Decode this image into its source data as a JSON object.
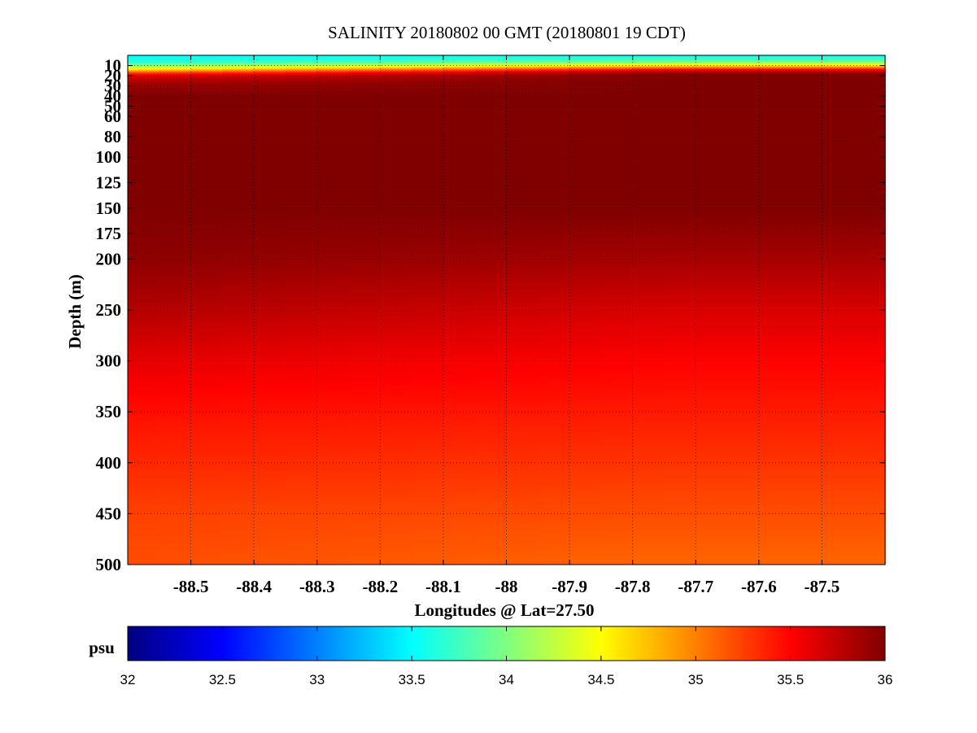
{
  "chart_data": {
    "type": "heatmap",
    "title": "SALINITY 20180802 00 GMT (20180801 19 CDT)",
    "xlabel": "Longitudes @ Lat=27.50",
    "ylabel": "Depth (m)",
    "x_ticks": [
      -88.5,
      -88.4,
      -88.3,
      -88.2,
      -88.1,
      -88,
      -87.9,
      -87.8,
      -87.7,
      -87.6,
      -87.5
    ],
    "x_tick_labels": [
      "-88.5",
      "-88.4",
      "-88.3",
      "-88.2",
      "-88.1",
      "-88",
      "-87.9",
      "-87.8",
      "-87.7",
      "-87.6",
      "-87.5"
    ],
    "xlim": [
      -88.6,
      -87.4
    ],
    "y_ticks": [
      10,
      20,
      30,
      40,
      50,
      60,
      80,
      100,
      125,
      150,
      175,
      200,
      250,
      300,
      350,
      400,
      450,
      500
    ],
    "y_tick_labels": [
      "10",
      "20",
      "30",
      "40",
      "50",
      "60",
      "80",
      "100",
      "125",
      "150",
      "175",
      "200",
      "250",
      "300",
      "350",
      "400",
      "450",
      "500"
    ],
    "ylim": [
      0,
      500
    ],
    "y_reversed": true,
    "grid": true,
    "colorbar": {
      "label": "psu",
      "min": 32,
      "max": 36,
      "colormap": "jet",
      "ticks": [
        32,
        32.5,
        33,
        33.5,
        34,
        34.5,
        35,
        35.5,
        36
      ],
      "tick_labels": [
        "32",
        "32.5",
        "33",
        "33.5",
        "34",
        "34.5",
        "35",
        "35.5",
        "36"
      ]
    },
    "depth_profile": {
      "depth": [
        0,
        6,
        10,
        14,
        17,
        20,
        25,
        30,
        40,
        50,
        80,
        150,
        200,
        250,
        300,
        350,
        400,
        450,
        500
      ],
      "salinity_west": [
        33.5,
        33.6,
        34.0,
        34.6,
        35.2,
        35.6,
        35.8,
        35.9,
        36.0,
        36.0,
        36.0,
        36.0,
        35.95,
        35.8,
        35.6,
        35.45,
        35.35,
        35.25,
        35.2
      ],
      "salinity_east": [
        33.5,
        33.9,
        34.6,
        35.5,
        35.9,
        36.0,
        36.0,
        36.0,
        36.0,
        36.0,
        36.0,
        36.0,
        35.85,
        35.65,
        35.5,
        35.4,
        35.3,
        35.2,
        35.1
      ]
    }
  }
}
